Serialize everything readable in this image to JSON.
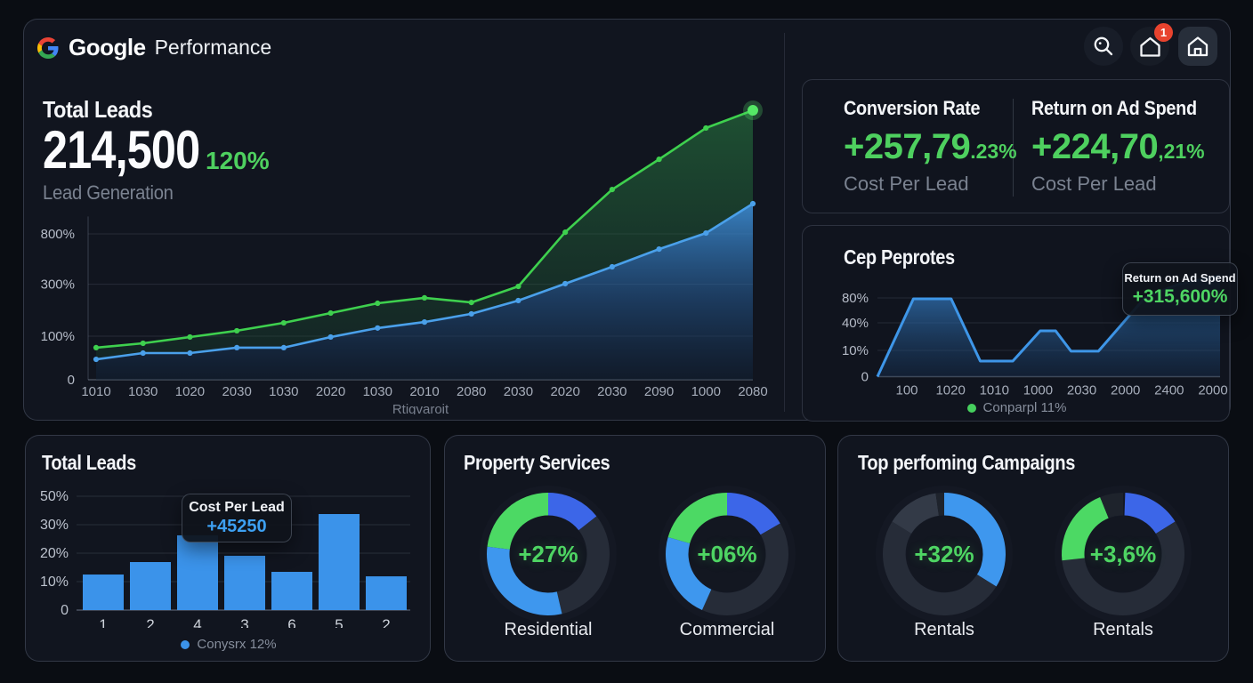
{
  "colors": {
    "page_bg": "#0a0d13",
    "card_bg": "#11151f",
    "accent_green": "#4ed05f",
    "line_green": "#3ed04e",
    "line_blue": "#4aa0ea",
    "bar_blue": "#3b93ea",
    "donut_royal_blue": "#3c66e8",
    "donut_sky_blue": "#3e97ee",
    "donut_green": "#4cd964",
    "donut_track": "#262c38",
    "donut_track_light": "#333a47",
    "donut_track_dark": "#1e232c",
    "badge_red": "#e8432e",
    "muted_text": "#7a8290",
    "axis_text": "#aab1bd"
  },
  "header": {
    "logo": "google-g-logo",
    "brand": "Google",
    "product": "Performance",
    "icons": [
      {
        "name": "search",
        "badge": null
      },
      {
        "name": "home-outline",
        "badge": "1"
      },
      {
        "name": "home-door",
        "badge": null
      }
    ]
  },
  "hero": {
    "title": "Total Leads",
    "value": "214,500",
    "delta": "120%",
    "subtitle": "Lead Generation"
  },
  "kpis": [
    {
      "title": "Conversion Rate",
      "value_main": "+257,79",
      "value_frac": ".23%",
      "subtitle": "Cost Per Lead"
    },
    {
      "title": "Return on Ad Spend",
      "value_main": "+224,70",
      "value_frac": ",21%",
      "subtitle": "Cost Per Lead"
    }
  ],
  "cap_panel": {
    "title": "Cep Peprotes",
    "tooltip": {
      "label": "Return on Ad Spend",
      "value": "+315,600%"
    },
    "legend": "Conparpl 11%"
  },
  "bars_panel": {
    "title": "Total Leads",
    "tooltip": {
      "label": "Cost Per Lead",
      "value": "+45250"
    },
    "legend": "Conysrx 12%"
  },
  "donut_panels": [
    {
      "title": "Property Services",
      "donuts": [
        {
          "center": "+27%",
          "label": "Residential"
        },
        {
          "center": "+06%",
          "label": "Commercial"
        }
      ]
    },
    {
      "title": "Top perfoming Campaigns",
      "donuts": [
        {
          "center": "+32%",
          "label": "Rentals"
        },
        {
          "center": "+3,6%",
          "label": "Rentals"
        }
      ]
    }
  ],
  "chart_data": [
    {
      "id": "leads_trend",
      "type": "area",
      "title": "Total Leads",
      "x_labels": [
        "1010",
        "1030",
        "1020",
        "2030",
        "1030",
        "2020",
        "1030",
        "2010",
        "2080",
        "2030",
        "2020",
        "2030",
        "2090",
        "1000",
        "2080"
      ],
      "x_axis_title": "Rtigvaroit",
      "y_ticks": [
        {
          "label": "0",
          "pos": 0
        },
        {
          "label": "100%",
          "pos": 0.16
        },
        {
          "label": "300%",
          "pos": 0.351
        },
        {
          "label": "800%",
          "pos": 0.536
        }
      ],
      "grid": true,
      "legend_position": "none",
      "series": [
        {
          "name": "return-on-ad-spend",
          "color": "#3ed04e",
          "fill_top": "rgba(46,150,74,0.46)",
          "fill_bottom": "rgba(28,82,52,0.26)",
          "approx_values_pct": [
            73,
            84,
            98,
            112,
            131,
            153,
            176,
            188,
            178,
            214,
            339,
            437,
            506,
            578,
            618
          ],
          "values_norm": [
            0.118,
            0.134,
            0.157,
            0.18,
            0.209,
            0.245,
            0.281,
            0.301,
            0.284,
            0.343,
            0.542,
            0.699,
            0.81,
            0.925,
            0.99
          ],
          "endpoint_dot": true
        },
        {
          "name": "total-leads",
          "color": "#4aa0ea",
          "fill_top": "rgba(66,155,232,0.80)",
          "fill_mid": "rgba(38,92,150,0.52)",
          "fill_bottom": "rgba(16,34,56,0.42)",
          "approx_values_pct": [
            47,
            61,
            61,
            73,
            73,
            98,
            118,
            133,
            151,
            182,
            220,
            259,
            300,
            337,
            404
          ],
          "values_norm": [
            0.075,
            0.098,
            0.098,
            0.118,
            0.118,
            0.157,
            0.19,
            0.212,
            0.242,
            0.291,
            0.353,
            0.415,
            0.48,
            0.539,
            0.647
          ],
          "endpoint_dot": false
        }
      ]
    },
    {
      "id": "cap_trend",
      "type": "area",
      "title": "Cep Peprotes",
      "x_labels": [
        "100",
        "1020",
        "1010",
        "1000",
        "2030",
        "2000",
        "2400",
        "2000"
      ],
      "y_ticks": [
        {
          "label": "0",
          "pos": 0
        },
        {
          "label": "10%",
          "pos": 0.243
        },
        {
          "label": "40%",
          "pos": 0.498
        },
        {
          "label": "80%",
          "pos": 0.728
        }
      ],
      "grid": true,
      "legend": "Conparpl 11%",
      "series": [
        {
          "name": "cap",
          "color": "#3e96e8",
          "fill_top": "rgba(58,140,220,0.78)",
          "fill_bottom": "rgba(22,50,85,0.38)",
          "approx_values_pct": [
            0,
            80,
            80,
            6,
            6,
            31,
            31,
            10,
            10,
            80,
            101,
            116
          ],
          "points_norm": [
            [
              0,
              0
            ],
            [
              0.105,
              0.72
            ],
            [
              0.215,
              0.72
            ],
            [
              0.3,
              0.144
            ],
            [
              0.395,
              0.144
            ],
            [
              0.475,
              0.424
            ],
            [
              0.52,
              0.424
            ],
            [
              0.565,
              0.235
            ],
            [
              0.645,
              0.235
            ],
            [
              0.78,
              0.728
            ],
            [
              0.875,
              0.852
            ],
            [
              1.0,
              0.934
            ]
          ]
        }
      ]
    },
    {
      "id": "leads_bars",
      "type": "bar",
      "title": "Total Leads",
      "categories": [
        "1",
        "2",
        "4",
        "3",
        "6",
        "5",
        "2"
      ],
      "approx_values_pct": [
        12.5,
        17,
        26,
        19,
        13.5,
        37.5,
        12
      ],
      "values_norm": [
        0.294,
        0.397,
        0.618,
        0.449,
        0.316,
        0.794,
        0.279
      ],
      "bar_color": "#3b93ea",
      "y_ticks": [
        {
          "label": "0",
          "pos": 0
        },
        {
          "label": "10%",
          "pos": 0.235
        },
        {
          "label": "20%",
          "pos": 0.471
        },
        {
          "label": "30%",
          "pos": 0.706
        },
        {
          "label": "50%",
          "pos": 0.941
        }
      ],
      "grid": true,
      "legend": "Conysrx 12%"
    },
    {
      "id": "donut_residential",
      "type": "donut",
      "center_label": "+27%",
      "label": "Residential",
      "segments": [
        {
          "name": "royal-blue",
          "color_key": "donut_royal_blue",
          "start_deg": 0,
          "end_deg": 52,
          "approx_pct": 14
        },
        {
          "name": "track",
          "color_key": "donut_track",
          "start_deg": 52,
          "end_deg": 167,
          "approx_pct": 32
        },
        {
          "name": "sky-blue",
          "color_key": "donut_sky_blue",
          "start_deg": 167,
          "end_deg": 277,
          "approx_pct": 31
        },
        {
          "name": "green",
          "color_key": "donut_green",
          "start_deg": 277,
          "end_deg": 360,
          "approx_pct": 23
        }
      ]
    },
    {
      "id": "donut_commercial",
      "type": "donut",
      "center_label": "+06%",
      "label": "Commercial",
      "segments": [
        {
          "name": "royal-blue",
          "color_key": "donut_royal_blue",
          "start_deg": 0,
          "end_deg": 60,
          "approx_pct": 17
        },
        {
          "name": "track",
          "color_key": "donut_track",
          "start_deg": 60,
          "end_deg": 204,
          "approx_pct": 40
        },
        {
          "name": "sky-blue",
          "color_key": "donut_sky_blue",
          "start_deg": 204,
          "end_deg": 286,
          "approx_pct": 23
        },
        {
          "name": "green",
          "color_key": "donut_green",
          "start_deg": 286,
          "end_deg": 360,
          "approx_pct": 20
        }
      ]
    },
    {
      "id": "donut_rentals_1",
      "type": "donut",
      "center_label": "+32%",
      "label": "Rentals",
      "segments": [
        {
          "name": "sky-blue",
          "color_key": "donut_sky_blue",
          "start_deg": 0,
          "end_deg": 122,
          "approx_pct": 34
        },
        {
          "name": "track",
          "color_key": "donut_track",
          "start_deg": 122,
          "end_deg": 302,
          "approx_pct": 50
        },
        {
          "name": "track-light",
          "color_key": "donut_track_light",
          "start_deg": 302,
          "end_deg": 352,
          "approx_pct": 14
        },
        {
          "name": "track-dark",
          "color_key": "donut_track_dark",
          "start_deg": 352,
          "end_deg": 360,
          "approx_pct": 2
        }
      ]
    },
    {
      "id": "donut_rentals_2",
      "type": "donut",
      "center_label": "+3,6%",
      "label": "Rentals",
      "segments": [
        {
          "name": "royal-blue",
          "color_key": "donut_royal_blue",
          "start_deg": 2,
          "end_deg": 58,
          "approx_pct": 16
        },
        {
          "name": "track",
          "color_key": "donut_track",
          "start_deg": 58,
          "end_deg": 264,
          "approx_pct": 57
        },
        {
          "name": "green",
          "color_key": "donut_green",
          "start_deg": 264,
          "end_deg": 338,
          "approx_pct": 21
        },
        {
          "name": "track-dark",
          "color_key": "donut_track_dark",
          "start_deg": 338,
          "end_deg": 360,
          "approx_pct": 6
        }
      ]
    }
  ]
}
